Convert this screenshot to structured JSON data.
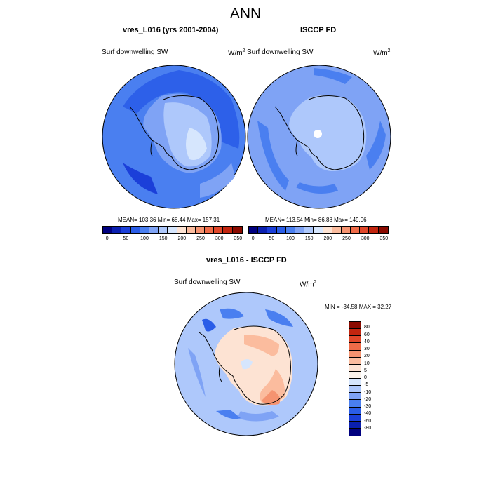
{
  "main_title": "ANN",
  "panels": [
    {
      "title": "vres_L016 (yrs 2001-2004)",
      "left_label": "Surf downwelling SW",
      "units": "W/m",
      "units_sup": "2",
      "stats": "MEAN= 103.36  Min=  68.44  Max= 157.31"
    },
    {
      "title": "ISCCP FD",
      "left_label": "Surf downwelling SW",
      "units": "W/m",
      "units_sup": "2",
      "stats": "MEAN= 113.54  Min=  86.88  Max= 149.06"
    }
  ],
  "diff_panel": {
    "title": "vres_L016 - ISCCP FD",
    "left_label": "Surf downwelling SW",
    "units": "W/m",
    "units_sup": "2",
    "minmax": "MIN = -34.58 MAX =  32.27"
  },
  "abs_colorbar": {
    "colors": [
      "#00007f",
      "#0a1fb0",
      "#1b3fd9",
      "#2a5de8",
      "#4a7ff0",
      "#7fa3f5",
      "#aec8fb",
      "#d6e6fd",
      "#fde3d3",
      "#fbbc9e",
      "#f59370",
      "#ef6b48",
      "#e0472a",
      "#c2250f",
      "#8a0a00"
    ],
    "labels": [
      "0",
      "50",
      "100",
      "150",
      "200",
      "250",
      "300",
      "350"
    ]
  },
  "diff_colorbar": {
    "colors": [
      "#8a0a00",
      "#c2250f",
      "#e0472a",
      "#ef6b48",
      "#f59370",
      "#fbbc9e",
      "#fde3d3",
      "#fbf2ea",
      "#d6e6fd",
      "#aec8fb",
      "#7fa3f5",
      "#4a7ff0",
      "#2a5de8",
      "#1b3fd9",
      "#0a1fb0",
      "#00007f"
    ],
    "labels": [
      "80",
      "60",
      "40",
      "30",
      "20",
      "10",
      "5",
      "0",
      "-5",
      "-10",
      "-20",
      "-30",
      "-40",
      "-60",
      "-80"
    ]
  }
}
